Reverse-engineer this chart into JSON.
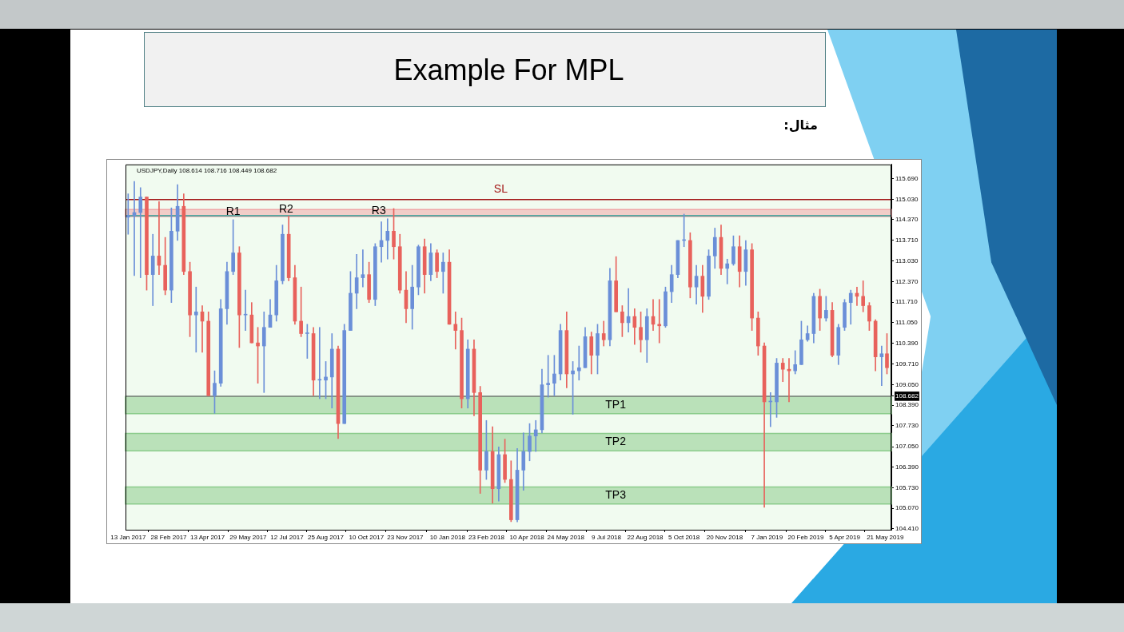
{
  "chart_data": {
    "type": "candlestick",
    "title": "Example For MPL",
    "subtitle": "مثال:",
    "annotations": [
      "USDJPY,Daily 108.614 108.716 108.449 108.682",
      {
        "text": "R1",
        "x": "2017-05-12",
        "y": 114.63
      },
      {
        "text": "R2",
        "x": "2017-07-11",
        "y": 114.69
      },
      {
        "text": "R3",
        "x": "2017-10-24",
        "y": 114.66
      }
    ],
    "x": [
      "2017-01-13",
      "2017-01-20",
      "2017-01-27",
      "2017-02-03",
      "2017-02-10",
      "2017-02-17",
      "2017-02-24",
      "2017-03-03",
      "2017-03-10",
      "2017-03-17",
      "2017-03-24",
      "2017-03-31",
      "2017-04-07",
      "2017-04-14",
      "2017-04-21",
      "2017-04-28",
      "2017-05-05",
      "2017-05-12",
      "2017-05-19",
      "2017-05-26",
      "2017-06-02",
      "2017-06-09",
      "2017-06-16",
      "2017-06-23",
      "2017-06-30",
      "2017-07-07",
      "2017-07-14",
      "2017-07-21",
      "2017-07-28",
      "2017-08-04",
      "2017-08-11",
      "2017-08-18",
      "2017-08-25",
      "2017-09-01",
      "2017-09-08",
      "2017-09-15",
      "2017-09-22",
      "2017-09-29",
      "2017-10-06",
      "2017-10-13",
      "2017-10-20",
      "2017-10-27",
      "2017-11-03",
      "2017-11-10",
      "2017-11-17",
      "2017-11-24",
      "2017-12-01",
      "2017-12-08",
      "2017-12-15",
      "2017-12-22",
      "2017-12-29",
      "2018-01-05",
      "2018-01-12",
      "2018-01-19",
      "2018-01-26",
      "2018-02-02",
      "2018-02-09",
      "2018-02-16",
      "2018-02-23",
      "2018-03-02",
      "2018-03-09",
      "2018-03-16",
      "2018-03-23",
      "2018-03-30",
      "2018-04-06",
      "2018-04-13",
      "2018-04-20",
      "2018-04-27",
      "2018-05-04",
      "2018-05-11",
      "2018-05-18",
      "2018-05-25",
      "2018-06-01",
      "2018-06-08",
      "2018-06-15",
      "2018-06-22",
      "2018-06-29",
      "2018-07-06",
      "2018-07-13",
      "2018-07-20",
      "2018-07-27",
      "2018-08-03",
      "2018-08-10",
      "2018-08-17",
      "2018-08-24",
      "2018-08-31",
      "2018-09-07",
      "2018-09-14",
      "2018-09-21",
      "2018-09-28",
      "2018-10-05",
      "2018-10-12",
      "2018-10-19",
      "2018-10-26",
      "2018-11-02",
      "2018-11-09",
      "2018-11-16",
      "2018-11-23",
      "2018-11-30",
      "2018-12-07",
      "2018-12-14",
      "2018-12-21",
      "2018-12-28",
      "2019-01-04",
      "2019-01-11",
      "2019-01-18",
      "2019-01-25",
      "2019-02-01",
      "2019-02-08",
      "2019-02-15",
      "2019-02-22",
      "2019-03-01",
      "2019-03-08",
      "2019-03-15",
      "2019-03-22",
      "2019-03-29",
      "2019-04-05",
      "2019-04-12",
      "2019-04-19",
      "2019-04-26",
      "2019-05-03",
      "2019-05-10",
      "2019-05-17",
      "2019-05-23"
    ],
    "ohlc": [
      [
        114.45,
        115.2,
        113.9,
        114.5
      ],
      [
        114.5,
        115.6,
        112.57,
        114.6
      ],
      [
        114.6,
        115.4,
        112.5,
        115.1
      ],
      [
        115.1,
        115.1,
        112.1,
        112.6
      ],
      [
        112.6,
        113.9,
        111.6,
        113.2
      ],
      [
        113.2,
        114.95,
        112.6,
        112.9
      ],
      [
        112.9,
        113.8,
        111.95,
        112.1
      ],
      [
        112.1,
        114.75,
        111.7,
        114.0
      ],
      [
        114.0,
        115.5,
        113.7,
        114.8
      ],
      [
        114.8,
        115.2,
        112.6,
        112.7
      ],
      [
        112.7,
        113.0,
        110.6,
        111.3
      ],
      [
        111.3,
        112.2,
        110.1,
        111.4
      ],
      [
        111.4,
        111.6,
        110.1,
        111.1
      ],
      [
        111.1,
        111.4,
        108.7,
        108.7
      ],
      [
        108.7,
        109.5,
        108.13,
        109.1
      ],
      [
        109.1,
        111.8,
        109.0,
        111.5
      ],
      [
        111.5,
        113.0,
        111.0,
        112.7
      ],
      [
        112.7,
        114.37,
        112.6,
        113.3
      ],
      [
        113.3,
        113.5,
        110.25,
        111.3
      ],
      [
        111.3,
        112.1,
        110.8,
        111.3
      ],
      [
        111.3,
        111.7,
        110.4,
        110.4
      ],
      [
        110.4,
        110.9,
        109.1,
        110.3
      ],
      [
        110.3,
        111.4,
        108.8,
        110.9
      ],
      [
        110.9,
        111.8,
        110.9,
        111.3
      ],
      [
        111.3,
        112.9,
        111.1,
        112.4
      ],
      [
        112.4,
        114.2,
        112.3,
        113.9
      ],
      [
        113.9,
        114.49,
        112.4,
        112.5
      ],
      [
        112.5,
        112.9,
        111.0,
        111.1
      ],
      [
        111.1,
        112.2,
        110.6,
        110.7
      ],
      [
        110.7,
        111.0,
        109.9,
        110.7
      ],
      [
        110.7,
        110.9,
        108.7,
        109.2
      ],
      [
        109.2,
        110.9,
        108.6,
        109.2
      ],
      [
        109.2,
        109.8,
        108.6,
        109.3
      ],
      [
        109.3,
        110.7,
        108.3,
        110.2
      ],
      [
        110.2,
        110.3,
        107.32,
        107.8
      ],
      [
        107.8,
        111.0,
        107.8,
        110.8
      ],
      [
        110.8,
        112.7,
        110.8,
        112.0
      ],
      [
        112.0,
        113.25,
        111.5,
        112.5
      ],
      [
        112.5,
        113.4,
        112.2,
        112.6
      ],
      [
        112.6,
        113.0,
        111.7,
        111.8
      ],
      [
        111.8,
        113.6,
        111.6,
        113.5
      ],
      [
        113.5,
        114.3,
        113.0,
        113.7
      ],
      [
        113.7,
        114.4,
        113.1,
        114.0
      ],
      [
        114.0,
        114.73,
        113.1,
        113.5
      ],
      [
        113.5,
        113.9,
        112.0,
        112.1
      ],
      [
        112.1,
        112.7,
        111.05,
        111.5
      ],
      [
        111.5,
        112.9,
        110.84,
        112.2
      ],
      [
        112.2,
        113.55,
        111.95,
        113.5
      ],
      [
        113.5,
        113.75,
        112.0,
        112.6
      ],
      [
        112.6,
        113.6,
        112.4,
        113.3
      ],
      [
        113.3,
        113.4,
        112.5,
        112.7
      ],
      [
        112.7,
        113.3,
        112.0,
        113.0
      ],
      [
        113.0,
        113.4,
        111.0,
        111.0
      ],
      [
        111.0,
        111.4,
        110.2,
        110.8
      ],
      [
        110.8,
        111.2,
        108.3,
        108.6
      ],
      [
        108.6,
        110.5,
        108.3,
        110.2
      ],
      [
        110.2,
        110.5,
        108.05,
        108.8
      ],
      [
        108.8,
        109.0,
        105.55,
        106.3
      ],
      [
        106.3,
        107.9,
        106.0,
        106.9
      ],
      [
        106.9,
        107.7,
        105.24,
        105.7
      ],
      [
        105.7,
        107.05,
        105.3,
        106.8
      ],
      [
        106.8,
        107.3,
        105.9,
        106.0
      ],
      [
        106.0,
        106.6,
        104.64,
        104.7
      ],
      [
        104.7,
        107.0,
        104.63,
        106.3
      ],
      [
        106.3,
        107.5,
        105.65,
        106.9
      ],
      [
        106.9,
        107.8,
        106.6,
        107.4
      ],
      [
        107.4,
        107.9,
        106.9,
        107.6
      ],
      [
        107.6,
        109.55,
        107.5,
        109.05
      ],
      [
        109.05,
        110.0,
        108.65,
        109.1
      ],
      [
        109.1,
        110.0,
        108.7,
        109.4
      ],
      [
        109.4,
        111.0,
        109.2,
        110.8
      ],
      [
        110.8,
        111.4,
        108.95,
        109.4
      ],
      [
        109.4,
        109.8,
        108.1,
        109.5
      ],
      [
        109.5,
        110.3,
        109.2,
        109.6
      ],
      [
        109.6,
        110.9,
        109.6,
        110.6
      ],
      [
        110.6,
        110.75,
        109.4,
        110.0
      ],
      [
        110.0,
        111.0,
        109.4,
        110.7
      ],
      [
        110.7,
        111.1,
        110.3,
        110.5
      ],
      [
        110.5,
        112.8,
        110.3,
        112.4
      ],
      [
        112.4,
        113.18,
        111.4,
        111.4
      ],
      [
        111.4,
        111.6,
        110.6,
        111.05
      ],
      [
        111.05,
        112.15,
        110.75,
        111.25
      ],
      [
        111.25,
        111.5,
        110.35,
        110.9
      ],
      [
        110.9,
        111.4,
        110.1,
        110.5
      ],
      [
        110.5,
        111.5,
        109.77,
        111.25
      ],
      [
        111.25,
        111.8,
        110.8,
        111.0
      ],
      [
        111.0,
        111.8,
        110.4,
        110.95
      ],
      [
        110.95,
        112.2,
        110.9,
        112.05
      ],
      [
        112.05,
        112.9,
        111.7,
        112.6
      ],
      [
        112.6,
        113.7,
        112.5,
        113.7
      ],
      [
        113.7,
        114.55,
        113.5,
        113.7
      ],
      [
        113.7,
        113.95,
        111.85,
        112.2
      ],
      [
        112.2,
        112.9,
        111.65,
        112.55
      ],
      [
        112.55,
        112.9,
        111.38,
        111.9
      ],
      [
        111.9,
        113.4,
        111.8,
        113.2
      ],
      [
        113.2,
        114.1,
        112.8,
        113.8
      ],
      [
        113.8,
        114.2,
        112.6,
        112.8
      ],
      [
        112.8,
        113.1,
        112.3,
        112.95
      ],
      [
        112.95,
        113.85,
        112.9,
        113.5
      ],
      [
        113.5,
        113.85,
        112.2,
        112.7
      ],
      [
        112.7,
        113.7,
        112.25,
        113.4
      ],
      [
        113.4,
        113.6,
        110.8,
        111.2
      ],
      [
        111.2,
        111.4,
        110.0,
        110.3
      ],
      [
        110.3,
        110.4,
        105.1,
        108.5
      ],
      [
        108.5,
        108.8,
        107.7,
        108.5
      ],
      [
        108.5,
        109.9,
        108.0,
        109.75
      ],
      [
        109.75,
        109.9,
        109.15,
        109.55
      ],
      [
        109.55,
        109.9,
        108.5,
        109.5
      ],
      [
        109.5,
        110.15,
        109.4,
        109.7
      ],
      [
        109.7,
        111.1,
        109.7,
        110.5
      ],
      [
        110.5,
        110.95,
        110.45,
        110.7
      ],
      [
        110.7,
        112.0,
        110.4,
        111.9
      ],
      [
        111.9,
        112.13,
        110.8,
        111.2
      ],
      [
        111.2,
        111.9,
        111.1,
        111.45
      ],
      [
        111.45,
        111.7,
        109.95,
        110.0
      ],
      [
        110.0,
        111.0,
        109.7,
        110.9
      ],
      [
        110.9,
        111.8,
        110.8,
        111.7
      ],
      [
        111.7,
        112.1,
        111.0,
        112.0
      ],
      [
        112.0,
        112.2,
        111.6,
        111.9
      ],
      [
        111.9,
        112.4,
        111.4,
        111.6
      ],
      [
        111.6,
        111.7,
        110.8,
        111.1
      ],
      [
        111.1,
        111.15,
        109.5,
        109.95
      ],
      [
        109.95,
        110.3,
        109.02,
        110.05
      ],
      [
        110.05,
        110.7,
        109.4,
        109.6
      ]
    ],
    "colors": [
      "#6b8fd8",
      "#6b8fd8",
      "#6b8fd8",
      "#e8625c",
      "#6b8fd8",
      "#e8625c",
      "#e8625c",
      "#6b8fd8",
      "#6b8fd8",
      "#e8625c",
      "#e8625c",
      "#6b8fd8",
      "#e8625c",
      "#e8625c",
      "#6b8fd8",
      "#6b8fd8",
      "#6b8fd8",
      "#6b8fd8",
      "#e8625c",
      "#6b8fd8",
      "#e8625c",
      "#e8625c",
      "#6b8fd8",
      "#6b8fd8",
      "#6b8fd8",
      "#6b8fd8",
      "#e8625c",
      "#e8625c",
      "#e8625c",
      "#6b8fd8",
      "#e8625c",
      "#6b8fd8",
      "#6b8fd8",
      "#6b8fd8",
      "#e8625c",
      "#6b8fd8",
      "#6b8fd8",
      "#6b8fd8",
      "#6b8fd8",
      "#e8625c",
      "#6b8fd8",
      "#6b8fd8",
      "#6b8fd8",
      "#e8625c",
      "#e8625c",
      "#e8625c",
      "#6b8fd8",
      "#6b8fd8",
      "#e8625c",
      "#6b8fd8",
      "#e8625c",
      "#6b8fd8",
      "#e8625c",
      "#e8625c",
      "#e8625c",
      "#6b8fd8",
      "#e8625c",
      "#e8625c",
      "#6b8fd8",
      "#e8625c",
      "#6b8fd8",
      "#e8625c",
      "#e8625c",
      "#6b8fd8",
      "#6b8fd8",
      "#6b8fd8",
      "#6b8fd8",
      "#6b8fd8",
      "#6b8fd8",
      "#6b8fd8",
      "#6b8fd8",
      "#e8625c",
      "#6b8fd8",
      "#6b8fd8",
      "#6b8fd8",
      "#e8625c",
      "#6b8fd8",
      "#e8625c",
      "#6b8fd8",
      "#e8625c",
      "#e8625c",
      "#6b8fd8",
      "#e8625c",
      "#e8625c",
      "#6b8fd8",
      "#e8625c",
      "#e8625c",
      "#6b8fd8",
      "#6b8fd8",
      "#6b8fd8",
      "#6b8fd8",
      "#e8625c",
      "#6b8fd8",
      "#e8625c",
      "#6b8fd8",
      "#6b8fd8",
      "#e8625c",
      "#6b8fd8",
      "#6b8fd8",
      "#e8625c",
      "#6b8fd8",
      "#e8625c",
      "#e8625c",
      "#e8625c",
      "#6b8fd8",
      "#6b8fd8",
      "#e8625c",
      "#e8625c",
      "#6b8fd8",
      "#6b8fd8",
      "#6b8fd8",
      "#6b8fd8",
      "#e8625c",
      "#6b8fd8",
      "#e8625c",
      "#6b8fd8",
      "#6b8fd8",
      "#6b8fd8",
      "#e8625c",
      "#e8625c",
      "#e8625c",
      "#e8625c",
      "#6b8fd8",
      "#e8625c"
    ],
    "xlim": [
      "2017-01-10",
      "2019-05-28"
    ],
    "xticks": [
      {
        "value": "2017-01-13",
        "label": "13 Jan 2017"
      },
      {
        "value": "2017-02-28",
        "label": "28 Feb 2017"
      },
      {
        "value": "2017-04-13",
        "label": "13 Apr 2017"
      },
      {
        "value": "2017-05-29",
        "label": "29 May 2017"
      },
      {
        "value": "2017-07-12",
        "label": "12 Jul 2017"
      },
      {
        "value": "2017-08-25",
        "label": "25 Aug 2017"
      },
      {
        "value": "2017-10-10",
        "label": "10 Oct 2017"
      },
      {
        "value": "2017-11-23",
        "label": "23 Nov 2017"
      },
      {
        "value": "2018-01-10",
        "label": "10 Jan 2018"
      },
      {
        "value": "2018-02-23",
        "label": "23 Feb 2018"
      },
      {
        "value": "2018-04-10",
        "label": "10 Apr 2018"
      },
      {
        "value": "2018-05-24",
        "label": "24 May 2018"
      },
      {
        "value": "2018-07-09",
        "label": "9 Jul 2018"
      },
      {
        "value": "2018-08-22",
        "label": "22 Aug 2018"
      },
      {
        "value": "2018-10-05",
        "label": "5 Oct 2018"
      },
      {
        "value": "2018-11-20",
        "label": "20 Nov 2018"
      },
      {
        "value": "2019-01-07",
        "label": "7 Jan 2019"
      },
      {
        "value": "2019-02-20",
        "label": "20 Feb 2019"
      },
      {
        "value": "2019-04-05",
        "label": "5 Apr 2019"
      },
      {
        "value": "2019-05-21",
        "label": "21 May 2019"
      }
    ],
    "ylim": [
      104.38,
      116.15
    ],
    "yticks": [
      {
        "value": 104.41,
        "label": "104.410"
      },
      {
        "value": 105.07,
        "label": "105.070"
      },
      {
        "value": 105.73,
        "label": "105.730"
      },
      {
        "value": 106.39,
        "label": "106.390"
      },
      {
        "value": 107.05,
        "label": "107.050"
      },
      {
        "value": 107.73,
        "label": "107.730"
      },
      {
        "value": 108.39,
        "label": "108.390"
      },
      108.682,
      {
        "value": 109.05,
        "label": "109.050"
      },
      {
        "value": 109.71,
        "label": "109.710"
      },
      {
        "value": 110.39,
        "label": "110.390"
      },
      {
        "value": 111.05,
        "label": "111.050"
      },
      {
        "value": 111.71,
        "label": "111.710"
      },
      {
        "value": 112.37,
        "label": "112.370"
      },
      {
        "value": 113.03,
        "label": "113.030"
      },
      {
        "value": 113.71,
        "label": "113.710"
      },
      {
        "value": 114.37,
        "label": "114.370"
      },
      {
        "value": 115.03,
        "label": "115.030"
      },
      {
        "value": 115.69,
        "label": "115.690"
      }
    ],
    "ref_lines": [
      {
        "axis": "y",
        "value": 108.682,
        "color": "#808080"
      },
      {
        "axis": "y",
        "value": 114.5,
        "color": "#2a9d96"
      },
      {
        "axis": "y",
        "value": 115.02,
        "label": "SL",
        "color": "#a31515"
      }
    ],
    "bands": [
      {
        "axis": "y",
        "from": 114.47,
        "to": 114.7,
        "color": "#f0a8a8"
      },
      {
        "axis": "y",
        "from": 108.12,
        "to": 108.67,
        "label": "TP1",
        "color": "#8ccc8c"
      },
      {
        "axis": "y",
        "from": 106.92,
        "to": 107.48,
        "label": "TP2",
        "color": "#8ccc8c"
      },
      {
        "axis": "y",
        "from": 105.21,
        "to": 105.76,
        "label": "TP3",
        "color": "#8ccc8c"
      }
    ]
  }
}
